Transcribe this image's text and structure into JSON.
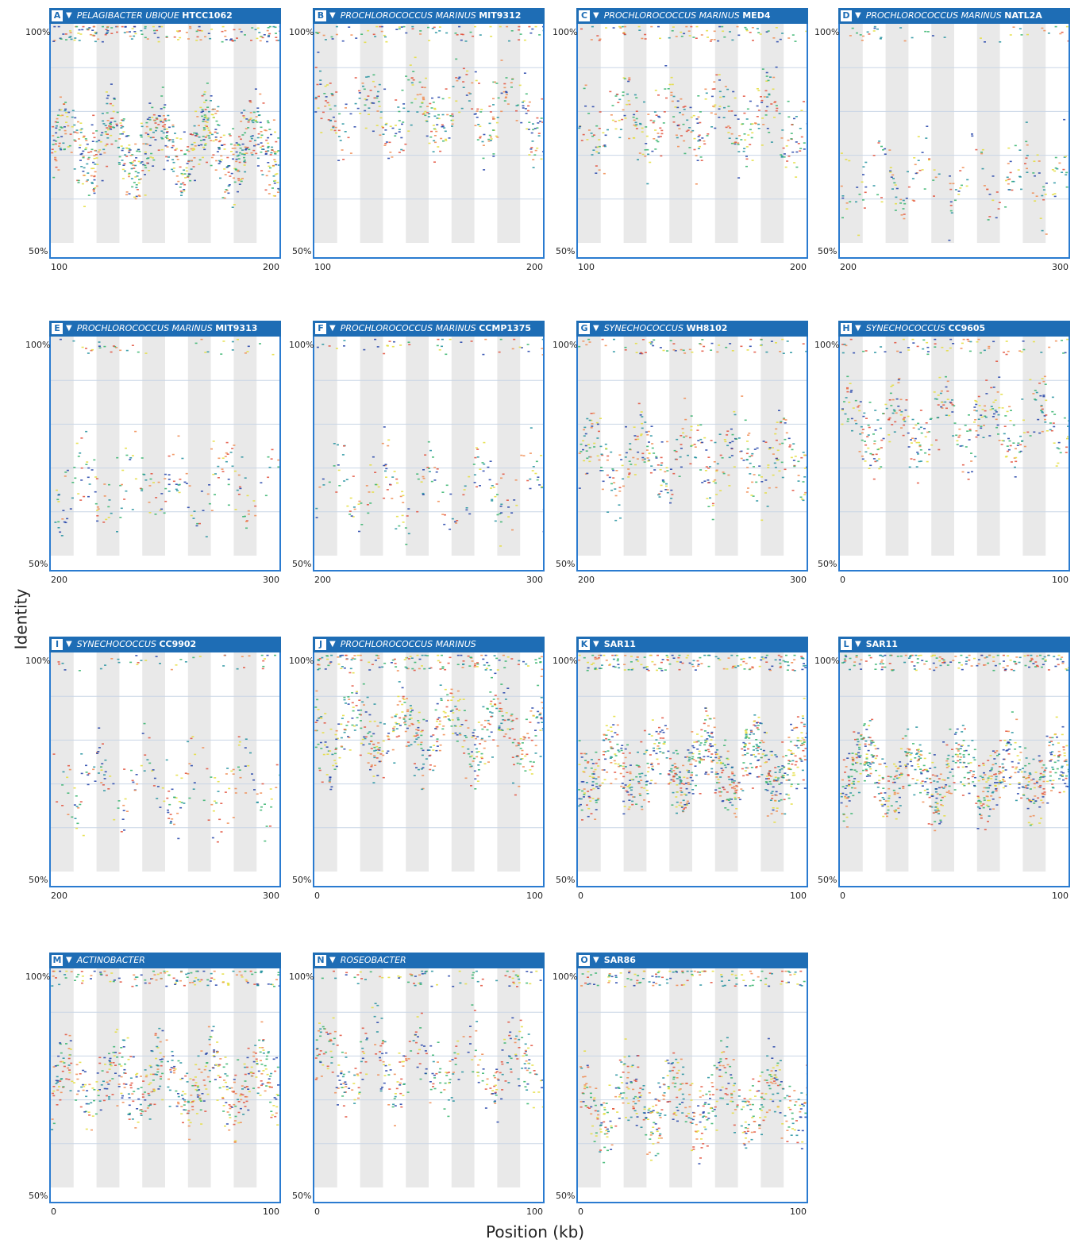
{
  "axes": {
    "xlabel": "Position (kb)",
    "ylabel": "Identity",
    "y_ticks": [
      "100%",
      "50%"
    ]
  },
  "colors": {
    "header": "#1e6db5",
    "frame": "#2a7bd0",
    "band": "#e9e9e9",
    "grid": "#c9d6e6",
    "points": [
      "#1f3fa8",
      "#1f8f9c",
      "#33b36b",
      "#e4dd3a",
      "#f08a4f",
      "#e24f3a"
    ]
  },
  "chart_data": [
    {
      "panel": "A",
      "genus": "PELAGIBACTER UBIQUE",
      "strain": "HTCC1062",
      "type": "scatter",
      "xlim": [
        100,
        200
      ],
      "x_ticks": [
        "100",
        "200"
      ],
      "ylim": [
        50,
        100
      ],
      "density": "very high",
      "pattern": "dense cluster 60-85% with yellow band near 95-100%"
    },
    {
      "panel": "B",
      "genus": "PROCHLOROCOCCUS MARINUS",
      "strain": "MIT9312",
      "type": "scatter",
      "xlim": [
        100,
        200
      ],
      "x_ticks": [
        "100",
        "200"
      ],
      "ylim": [
        50,
        100
      ],
      "density": "medium",
      "pattern": "green band near 88-95%, sparse blue below"
    },
    {
      "panel": "C",
      "genus": "PROCHLOROCOCCUS MARINUS",
      "strain": "MED4",
      "type": "scatter",
      "xlim": [
        100,
        200
      ],
      "x_ticks": [
        "100",
        "200"
      ],
      "ylim": [
        50,
        100
      ],
      "density": "medium",
      "pattern": "green band near 75-85%"
    },
    {
      "panel": "D",
      "genus": "PROCHLOROCOCCUS MARINUS",
      "strain": "NATL2A",
      "type": "scatter",
      "xlim": [
        200,
        300
      ],
      "x_ticks": [
        "200",
        "300"
      ],
      "ylim": [
        50,
        100
      ],
      "density": "low",
      "pattern": "sparse vertical clusters 55-75%"
    },
    {
      "panel": "E",
      "genus": "PROCHLOROCOCCUS MARINUS",
      "strain": "MIT9313",
      "type": "scatter",
      "xlim": [
        200,
        300
      ],
      "x_ticks": [
        "200",
        "300"
      ],
      "ylim": [
        50,
        100
      ],
      "density": "low",
      "pattern": "tall spike near 210 kb, sparse clusters 60-75%"
    },
    {
      "panel": "F",
      "genus": "PROCHLOROCOCCUS MARINUS",
      "strain": "CCMP1375",
      "type": "scatter",
      "xlim": [
        200,
        300
      ],
      "x_ticks": [
        "200",
        "300"
      ],
      "ylim": [
        50,
        100
      ],
      "density": "low",
      "pattern": "vertical clusters 58-78%"
    },
    {
      "panel": "G",
      "genus": "SYNECHOCOCCUS",
      "strain": "WH8102",
      "type": "scatter",
      "xlim": [
        200,
        300
      ],
      "x_ticks": [
        "200",
        "300"
      ],
      "ylim": [
        50,
        100
      ],
      "density": "medium",
      "pattern": "blue points 60-85%, orange near top"
    },
    {
      "panel": "H",
      "genus": "SYNECHOCOCCUS",
      "strain": "CC9605",
      "type": "scatter",
      "xlim": [
        0,
        100
      ],
      "x_ticks": [
        "0",
        "100"
      ],
      "ylim": [
        50,
        100
      ],
      "density": "medium",
      "pattern": "blue band near 95-98%, scattered below"
    },
    {
      "panel": "I",
      "genus": "SYNECHOCOCCUS",
      "strain": "CC9902",
      "type": "scatter",
      "xlim": [
        200,
        300
      ],
      "x_ticks": [
        "200",
        "300"
      ],
      "ylim": [
        50,
        100
      ],
      "density": "low",
      "pattern": "blue points 60-78%"
    },
    {
      "panel": "J",
      "genus": "PROCHLOROCOCCUS MARINUS",
      "strain": "",
      "type": "scatter",
      "xlim": [
        0,
        100
      ],
      "x_ticks": [
        "0",
        "100"
      ],
      "ylim": [
        50,
        100
      ],
      "density": "high",
      "pattern": "green band near 95-100%, vertical clusters 55-65%"
    },
    {
      "panel": "K",
      "genus": "",
      "strain": "SAR11",
      "type": "scatter",
      "xlim": [
        0,
        100
      ],
      "x_ticks": [
        "0",
        "100"
      ],
      "ylim": [
        50,
        100
      ],
      "density": "very high",
      "pattern": "dense cluster 60-85% with yellow band near top"
    },
    {
      "panel": "L",
      "genus": "",
      "strain": "SAR11",
      "type": "scatter",
      "xlim": [
        0,
        100
      ],
      "x_ticks": [
        "0",
        "100"
      ],
      "ylim": [
        50,
        100
      ],
      "density": "very high",
      "pattern": "dense cluster 55-85% with orange band near top"
    },
    {
      "panel": "M",
      "genus": "ACTINOBACTER",
      "strain": "",
      "type": "scatter",
      "xlim": [
        0,
        100
      ],
      "x_ticks": [
        "0",
        "100"
      ],
      "ylim": [
        50,
        100
      ],
      "density": "high",
      "pattern": "green band near top, clusters 60-75%"
    },
    {
      "panel": "N",
      "genus": "ROSEOBACTER",
      "strain": "",
      "type": "scatter",
      "xlim": [
        0,
        100
      ],
      "x_ticks": [
        "0",
        "100"
      ],
      "ylim": [
        50,
        100
      ],
      "density": "medium",
      "pattern": "blue band near top, sparse clusters below"
    },
    {
      "panel": "O",
      "genus": "",
      "strain": "SAR86",
      "type": "scatter",
      "xlim": [
        0,
        100
      ],
      "x_ticks": [
        "0",
        "100"
      ],
      "ylim": [
        50,
        100
      ],
      "density": "high",
      "pattern": "dense cluster 60-80% with orange near top"
    }
  ]
}
